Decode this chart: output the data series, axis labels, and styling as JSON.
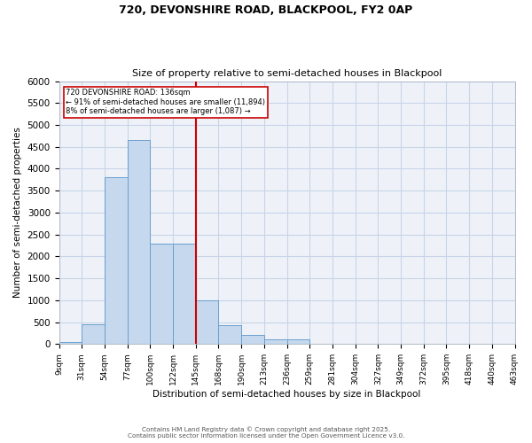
{
  "title1": "720, DEVONSHIRE ROAD, BLACKPOOL, FY2 0AP",
  "title2": "Size of property relative to semi-detached houses in Blackpool",
  "xlabel": "Distribution of semi-detached houses by size in Blackpool",
  "ylabel": "Number of semi-detached properties",
  "annotation_title": "720 DEVONSHIRE ROAD: 136sqm",
  "annotation_line1": "← 91% of semi-detached houses are smaller (11,894)",
  "annotation_line2": "8% of semi-detached houses are larger (1,087) →",
  "footer1": "Contains HM Land Registry data © Crown copyright and database right 2025.",
  "footer2": "Contains public sector information licensed under the Open Government Licence v3.0.",
  "bin_labels": [
    "9sqm",
    "31sqm",
    "54sqm",
    "77sqm",
    "100sqm",
    "122sqm",
    "145sqm",
    "168sqm",
    "190sqm",
    "213sqm",
    "236sqm",
    "259sqm",
    "281sqm",
    "304sqm",
    "327sqm",
    "349sqm",
    "372sqm",
    "395sqm",
    "418sqm",
    "440sqm",
    "463sqm"
  ],
  "bar_values": [
    50,
    450,
    3800,
    4650,
    2300,
    2300,
    1000,
    425,
    200,
    100,
    100,
    0,
    0,
    0,
    0,
    0,
    0,
    0,
    0,
    0
  ],
  "bar_color": "#c5d8ee",
  "bar_edge_color": "#6a9fd0",
  "line_color": "#cc0000",
  "grid_color": "#c8d4e8",
  "bg_color": "#eef2f8",
  "ylim": [
    0,
    6000
  ],
  "yticks": [
    0,
    500,
    1000,
    1500,
    2000,
    2500,
    3000,
    3500,
    4000,
    4500,
    5000,
    5500,
    6000
  ],
  "property_line_idx": 6
}
